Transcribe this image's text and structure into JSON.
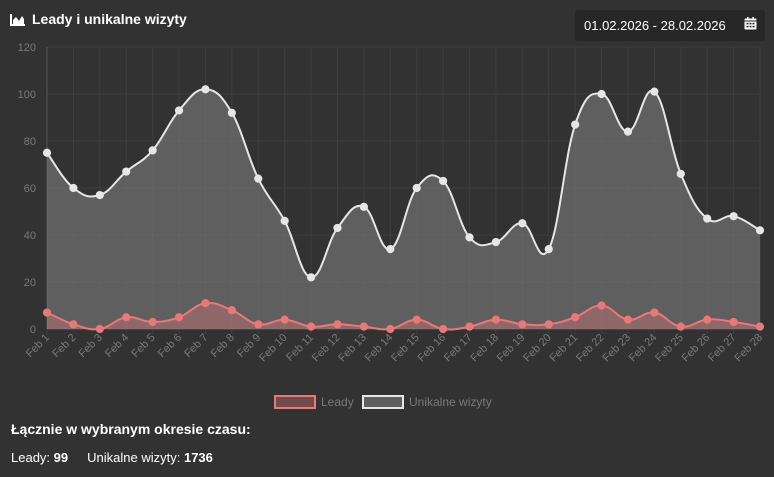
{
  "header": {
    "title": "Leady i unikalne wizyty",
    "icon": "area-chart-icon"
  },
  "date_range": {
    "value": "01.02.2026 - 28.02.2026",
    "icon": "calendar-icon"
  },
  "chart_data": {
    "type": "line",
    "categories": [
      "Feb 1",
      "Feb 2",
      "Feb 3",
      "Feb 4",
      "Feb 5",
      "Feb 6",
      "Feb 7",
      "Feb 8",
      "Feb 9",
      "Feb 10",
      "Feb 11",
      "Feb 12",
      "Feb 13",
      "Feb 14",
      "Feb 15",
      "Feb 16",
      "Feb 17",
      "Feb 18",
      "Feb 19",
      "Feb 20",
      "Feb 21",
      "Feb 22",
      "Feb 23",
      "Feb 24",
      "Feb 25",
      "Feb 26",
      "Feb 27",
      "Feb 28"
    ],
    "series": [
      {
        "name": "Leady",
        "color": "#e8797a",
        "values": [
          7,
          2,
          0,
          5,
          3,
          5,
          11,
          8,
          2,
          4,
          1,
          2,
          1,
          0,
          4,
          0,
          1,
          4,
          2,
          2,
          5,
          10,
          4,
          7,
          1,
          4,
          3,
          1
        ]
      },
      {
        "name": "Unikalne wizyty",
        "color": "#e6e6e6",
        "values": [
          75,
          60,
          57,
          67,
          76,
          93,
          102,
          92,
          64,
          46,
          22,
          43,
          52,
          34,
          60,
          63,
          39,
          37,
          45,
          34,
          87,
          100,
          84,
          101,
          66,
          47,
          48,
          42
        ]
      }
    ],
    "yticks": [
      "0",
      "20",
      "40",
      "60",
      "80",
      "100",
      "120"
    ],
    "ylim": [
      0,
      120
    ],
    "grid": true,
    "legend_position": "bottom"
  },
  "totals": {
    "title": "Łącznie w wybranym okresie czasu:",
    "leads_label": "Leady:",
    "leads_value": "99",
    "visits_label": "Unikalne wizyty:",
    "visits_value": "1736"
  }
}
